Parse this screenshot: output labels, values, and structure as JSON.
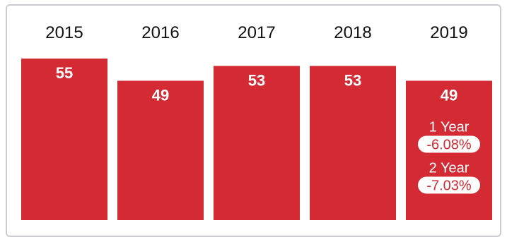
{
  "colors": {
    "bar": "#d32a33",
    "text": "#111111",
    "bar_text": "#ffffff",
    "change_text": "#d32a33",
    "pill_bg": "#ffffff"
  },
  "chart_data": {
    "type": "bar",
    "categories": [
      "2015",
      "2016",
      "2017",
      "2018",
      "2019"
    ],
    "values": [
      55,
      49,
      53,
      53,
      49
    ],
    "value_labels": [
      "55",
      "49",
      "53",
      "53",
      "49"
    ],
    "title": "",
    "xlabel": "",
    "ylabel": "",
    "category_position": "top",
    "grid": false,
    "legend": "none",
    "changes": [
      {
        "label": "1 Year",
        "value": "-6.08%"
      },
      {
        "label": "2 Year",
        "value": "-7.03%"
      }
    ]
  }
}
